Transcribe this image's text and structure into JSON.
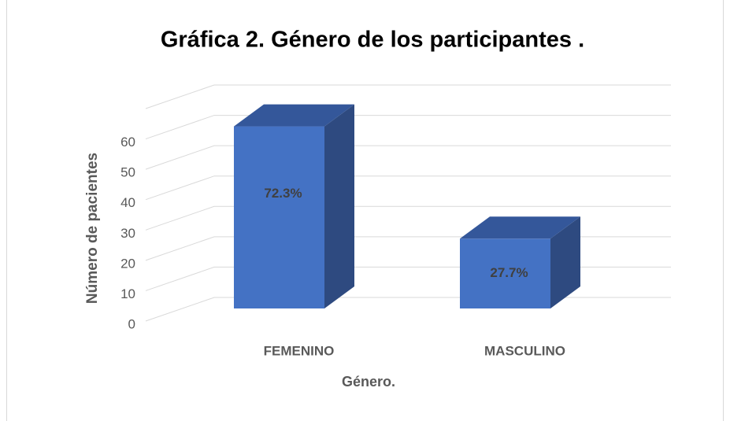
{
  "chart_data": {
    "type": "bar3d",
    "title": "Gráfica 2. Género de los participantes .",
    "x_label": "Género.",
    "y_label": "Número de pacientes",
    "categories": [
      "FEMENINO",
      "MASCULINO"
    ],
    "values": [
      60,
      23
    ],
    "data_labels": [
      "72.3%",
      "27.7%"
    ],
    "color": "#4472c4",
    "ylim": [
      0,
      70
    ],
    "yticks": [
      0,
      10,
      20,
      30,
      40,
      50,
      60
    ],
    "grid": true
  }
}
